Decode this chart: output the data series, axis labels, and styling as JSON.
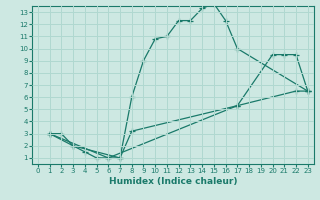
{
  "xlabel": "Humidex (Indice chaleur)",
  "ylabel": "",
  "bg_color": "#cde8e2",
  "grid_color": "#b0d8d0",
  "line_color": "#1a7a6a",
  "xlim": [
    -0.5,
    23.5
  ],
  "ylim": [
    0.5,
    13.5
  ],
  "xticks": [
    0,
    1,
    2,
    3,
    4,
    5,
    6,
    7,
    8,
    9,
    10,
    11,
    12,
    13,
    14,
    15,
    16,
    17,
    18,
    19,
    20,
    21,
    22,
    23
  ],
  "yticks": [
    1,
    2,
    3,
    4,
    5,
    6,
    7,
    8,
    9,
    10,
    11,
    12,
    13
  ],
  "line1": {
    "x": [
      1,
      2,
      3,
      4,
      5,
      6,
      7,
      8,
      9,
      10,
      11,
      12,
      13,
      14,
      15,
      16,
      17,
      23
    ],
    "y": [
      3,
      3,
      2,
      1.5,
      1,
      1,
      1,
      6,
      9,
      10.8,
      11,
      12.3,
      12.3,
      13.3,
      13.7,
      12.3,
      10,
      6.5
    ]
  },
  "line2": {
    "x": [
      1,
      3,
      7,
      8,
      17,
      20,
      21,
      22,
      23
    ],
    "y": [
      3,
      2,
      1,
      3.2,
      5.3,
      9.5,
      9.5,
      9.5,
      6.5
    ]
  },
  "line3": {
    "x": [
      1,
      6,
      17,
      22,
      23
    ],
    "y": [
      3,
      1,
      5.3,
      6.5,
      6.5
    ]
  }
}
